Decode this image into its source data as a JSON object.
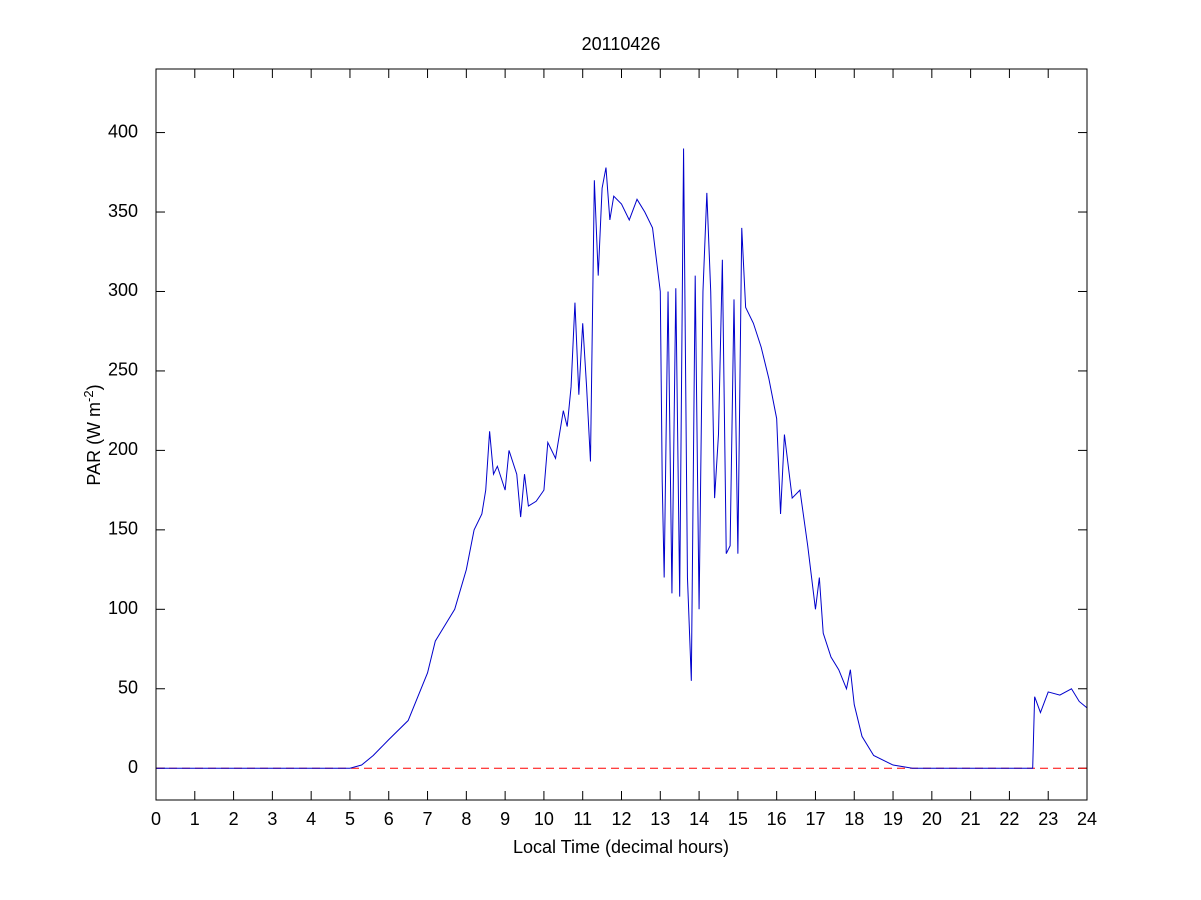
{
  "chart_data": {
    "type": "line",
    "title": "20110426",
    "xlabel": "Local Time (decimal hours)",
    "ylabel": {
      "text": "PAR (W m",
      "superscript": "-2",
      "suffix": ")"
    },
    "xlim": [
      0,
      24
    ],
    "ylim": [
      -20,
      440
    ],
    "xticks": [
      0,
      1,
      2,
      3,
      4,
      5,
      6,
      7,
      8,
      9,
      10,
      11,
      12,
      13,
      14,
      15,
      16,
      17,
      18,
      19,
      20,
      21,
      22,
      23,
      24
    ],
    "yticks": [
      0,
      50,
      100,
      150,
      200,
      250,
      300,
      350,
      400
    ],
    "reference_line": {
      "value": 0,
      "color": "#ff0000",
      "style": "dashed"
    },
    "series": [
      {
        "color": "#0000cc",
        "x": [
          0,
          5,
          5.3,
          5.6,
          6,
          6.5,
          7,
          7.2,
          7.5,
          7.7,
          8,
          8.2,
          8.4,
          8.5,
          8.6,
          8.7,
          8.8,
          9,
          9.1,
          9.3,
          9.4,
          9.5,
          9.6,
          9.8,
          10,
          10.1,
          10.3,
          10.5,
          10.6,
          10.7,
          10.8,
          10.9,
          11,
          11.1,
          11.2,
          11.3,
          11.4,
          11.5,
          11.6,
          11.7,
          11.8,
          12,
          12.2,
          12.4,
          12.6,
          12.8,
          13,
          13.05,
          13.1,
          13.2,
          13.3,
          13.4,
          13.5,
          13.6,
          13.7,
          13.8,
          13.9,
          14,
          14.1,
          14.2,
          14.3,
          14.4,
          14.5,
          14.6,
          14.7,
          14.8,
          14.9,
          15,
          15.1,
          15.2,
          15.4,
          15.6,
          15.8,
          16,
          16.1,
          16.2,
          16.4,
          16.6,
          16.8,
          17,
          17.1,
          17.2,
          17.4,
          17.6,
          17.8,
          17.9,
          18,
          18.2,
          18.5,
          19,
          19.5,
          22.6,
          22.65,
          22.8,
          23,
          23.3,
          23.6,
          23.8,
          24
        ],
        "values": [
          0,
          0,
          2,
          8,
          18,
          30,
          60,
          80,
          92,
          100,
          125,
          150,
          160,
          175,
          212,
          185,
          190,
          175,
          200,
          185,
          158,
          185,
          165,
          168,
          175,
          205,
          195,
          225,
          215,
          240,
          293,
          235,
          280,
          240,
          193,
          370,
          310,
          365,
          378,
          345,
          360,
          355,
          345,
          358,
          350,
          340,
          300,
          180,
          120,
          300,
          110,
          302,
          108,
          390,
          120,
          55,
          310,
          100,
          300,
          362,
          300,
          170,
          210,
          320,
          135,
          140,
          295,
          135,
          340,
          290,
          280,
          265,
          245,
          220,
          160,
          210,
          170,
          175,
          140,
          100,
          120,
          85,
          70,
          62,
          50,
          62,
          40,
          20,
          8,
          2,
          0,
          0,
          45,
          35,
          48,
          46,
          50,
          42,
          38
        ]
      }
    ]
  }
}
